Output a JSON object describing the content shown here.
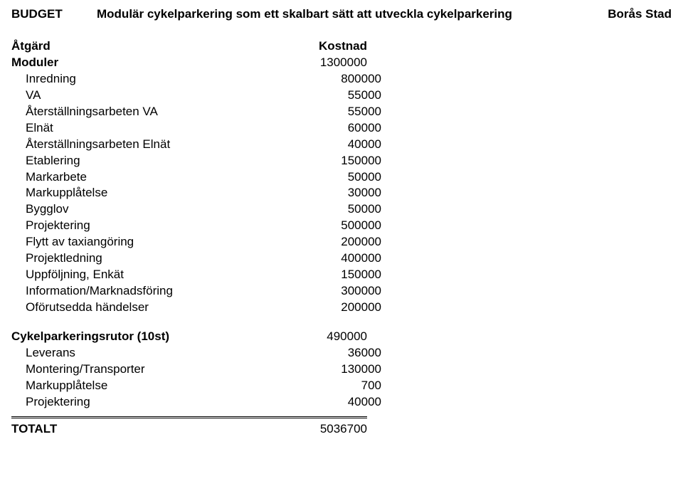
{
  "header": {
    "left": "BUDGET",
    "center": "Modulär cykelparkering som ett skalbart sätt att utveckla cykelparkering",
    "right": "Borås Stad"
  },
  "columns": {
    "action": "Åtgärd",
    "cost": "Kostnad"
  },
  "sections": [
    {
      "title": "Moduler",
      "title_value": "1300000",
      "items": [
        {
          "label": "Inredning",
          "value": "800000"
        },
        {
          "label": "VA",
          "value": "55000"
        },
        {
          "label": "Återställningsarbeten VA",
          "value": "55000"
        },
        {
          "label": "Elnät",
          "value": "60000"
        },
        {
          "label": "Återställningsarbeten Elnät",
          "value": "40000"
        },
        {
          "label": "Etablering",
          "value": "150000"
        },
        {
          "label": "Markarbete",
          "value": "50000"
        },
        {
          "label": "Markupplåtelse",
          "value": "30000"
        },
        {
          "label": "Bygglov",
          "value": "50000"
        },
        {
          "label": "Projektering",
          "value": "500000"
        },
        {
          "label": "Flytt av taxiangöring",
          "value": "200000"
        },
        {
          "label": "Projektledning",
          "value": "400000"
        },
        {
          "label": "Uppföljning, Enkät",
          "value": "150000"
        },
        {
          "label": "Information/Marknadsföring",
          "value": "300000"
        },
        {
          "label": "Oförutsedda händelser",
          "value": "200000"
        }
      ]
    },
    {
      "title": "Cykelparkeringsrutor (10st)",
      "title_value": "490000",
      "items": [
        {
          "label": "Leverans",
          "value": "36000"
        },
        {
          "label": "Montering/Transporter",
          "value": "130000"
        },
        {
          "label": "Markupplåtelse",
          "value": "700"
        },
        {
          "label": "Projektering",
          "value": "40000"
        }
      ]
    }
  ],
  "total": {
    "label": "TOTALT",
    "value": "5036700"
  }
}
